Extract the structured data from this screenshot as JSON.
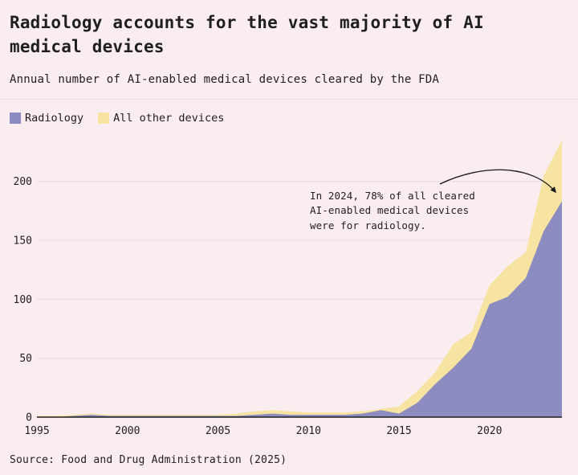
{
  "header": {
    "title": "Radiology accounts for the vast majority of AI medical devices",
    "subtitle": "Annual number of AI-enabled medical devices cleared by the FDA"
  },
  "legend": {
    "items": [
      {
        "label": "Radiology",
        "color": "#8d8cc0"
      },
      {
        "label": "All other devices",
        "color": "#f7e3a2"
      }
    ]
  },
  "chart_data": {
    "type": "area",
    "stacked": true,
    "title": "Radiology accounts for the vast majority of AI medical devices",
    "subtitle": "Annual number of AI-enabled medical devices cleared by the FDA",
    "x": [
      1995,
      1996,
      1997,
      1998,
      1999,
      2000,
      2001,
      2002,
      2003,
      2004,
      2005,
      2006,
      2007,
      2008,
      2009,
      2010,
      2011,
      2012,
      2013,
      2014,
      2015,
      2016,
      2017,
      2018,
      2019,
      2020,
      2021,
      2022,
      2023,
      2024
    ],
    "series": [
      {
        "name": "Radiology",
        "color": "#8d8cc0",
        "values": [
          0,
          0,
          1,
          2,
          1,
          1,
          1,
          1,
          1,
          1,
          1,
          1,
          2,
          3,
          2,
          2,
          2,
          2,
          3,
          6,
          3,
          12,
          28,
          42,
          58,
          96,
          102,
          118,
          158,
          183
        ]
      },
      {
        "name": "All other devices",
        "color": "#f7e3a2",
        "values": [
          1,
          1,
          1,
          1,
          1,
          1,
          1,
          1,
          1,
          1,
          1,
          2,
          3,
          3,
          3,
          2,
          2,
          2,
          2,
          1,
          6,
          10,
          10,
          20,
          14,
          16,
          26,
          22,
          47,
          52
        ]
      }
    ],
    "xlabel": "",
    "ylabel": "",
    "ylim": [
      0,
      240
    ],
    "yticks": [
      0,
      50,
      100,
      150,
      200
    ],
    "xticks": [
      1995,
      2000,
      2005,
      2010,
      2015,
      2020
    ],
    "grid": "horizontal",
    "legend_position": "top-left",
    "annotation": {
      "text": "In 2024, 78% of all cleared\nAI-enabled medical devices\nwere for radiology."
    }
  },
  "source": "Source: Food and Drug Administration (2025)",
  "colors": {
    "background": "#f9edef",
    "text": "#1f1f1f",
    "grid": "#e8dadc",
    "axis": "#1f1f1f",
    "arrow": "#1a1a1a"
  }
}
